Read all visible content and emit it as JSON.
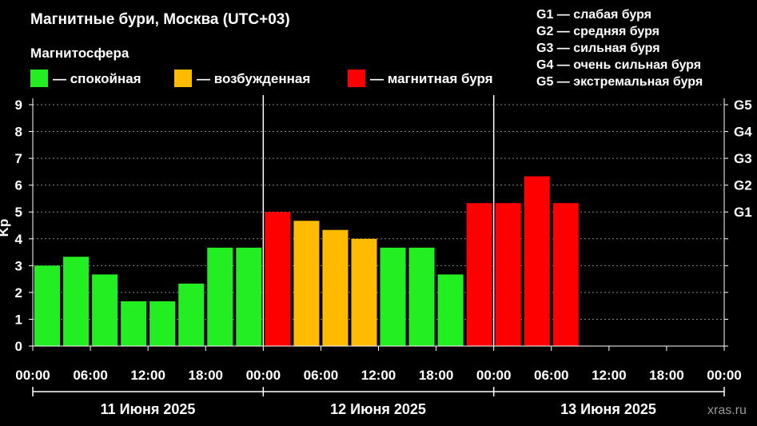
{
  "chart_data": {
    "type": "bar",
    "title": "Магнитные бури, Москва (UTC+03)",
    "legend_title": "Магнитосфера",
    "legend": [
      {
        "label": "— спокойная",
        "color": "#22ee22"
      },
      {
        "label": "— возбужденная",
        "color": "#ffbb00"
      },
      {
        "label": "— магнитная буря",
        "color": "#ff0000"
      }
    ],
    "g_legend": [
      "G1 — слабая буря",
      "G2 — средняя буря",
      "G3 — сильная буря",
      "G4 — очень сильная буря",
      "G5 — экстремальная буря"
    ],
    "ylabel": "Kp",
    "ylim": [
      0,
      9
    ],
    "y_ticks": [
      "0",
      "1",
      "2",
      "3",
      "4",
      "5",
      "6",
      "7",
      "8",
      "9"
    ],
    "g_axis": [
      {
        "label": "G1",
        "value": 5
      },
      {
        "label": "G2",
        "value": 6
      },
      {
        "label": "G3",
        "value": 7
      },
      {
        "label": "G4",
        "value": 8
      },
      {
        "label": "G5",
        "value": 9
      }
    ],
    "x_ticks": [
      "00:00",
      "06:00",
      "12:00",
      "18:00",
      "00:00",
      "06:00",
      "12:00",
      "18:00",
      "00:00",
      "06:00",
      "12:00",
      "18:00",
      "00:00"
    ],
    "days": [
      "11 Июня 2025",
      "12 Июня 2025",
      "13 Июня 2025"
    ],
    "slots_total": 24,
    "values": [
      3.0,
      3.33,
      2.67,
      1.67,
      1.67,
      2.33,
      3.67,
      3.67,
      5.0,
      4.67,
      4.33,
      4.0,
      3.67,
      3.67,
      2.67,
      5.33,
      5.33,
      6.33,
      5.33
    ],
    "levels": [
      "calm",
      "calm",
      "calm",
      "calm",
      "calm",
      "calm",
      "calm",
      "calm",
      "storm",
      "excited",
      "excited",
      "excited",
      "calm",
      "calm",
      "calm",
      "storm",
      "storm",
      "storm",
      "storm"
    ],
    "grid": true,
    "watermark": "xras.ru"
  },
  "colors": {
    "calm": "#22ee22",
    "excited": "#ffbb00",
    "storm": "#ff0000",
    "grid": "#888888",
    "axis": "#ffffff"
  }
}
